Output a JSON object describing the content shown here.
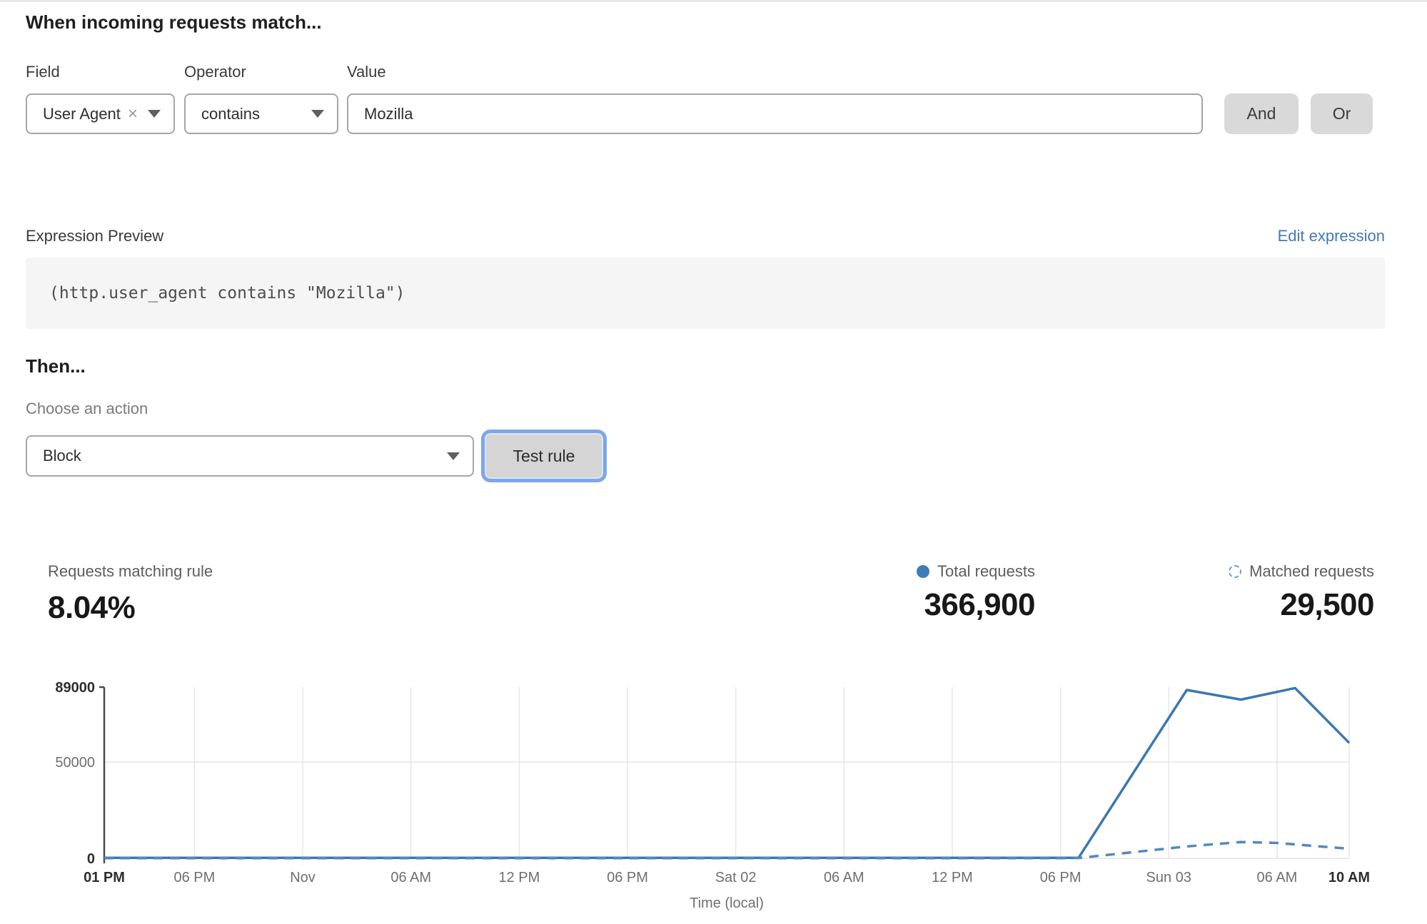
{
  "rule_builder": {
    "heading": "When incoming requests match...",
    "field": {
      "label": "Field",
      "value": "User Agent",
      "remove_icon": "close-icon",
      "dropdown_icon": "chevron-down-icon"
    },
    "operator": {
      "label": "Operator",
      "value": "contains"
    },
    "value": {
      "label": "Value",
      "value": "Mozilla"
    },
    "and_label": "And",
    "or_label": "Or"
  },
  "expression": {
    "label": "Expression Preview",
    "edit_link": "Edit expression",
    "code": "(http.user_agent contains \"Mozilla\")"
  },
  "action": {
    "heading": "Then...",
    "choose_label": "Choose an action",
    "selected": "Block",
    "test_button": "Test rule"
  },
  "stats": {
    "matching": {
      "label": "Requests matching rule",
      "value": "8.04%"
    },
    "total": {
      "label": "Total requests",
      "value": "366,900",
      "marker": "solid-dot"
    },
    "matched": {
      "label": "Matched requests",
      "value": "29,500",
      "marker": "dashed-circle"
    }
  },
  "colors": {
    "accent_blue": "#3d7cb8",
    "link_blue": "#4279b8",
    "line_solid": "#3c78b0",
    "line_dashed": "#5189bf",
    "focus_ring": "#7da7e6",
    "button_gray": "#d9d9d9",
    "code_box_gray": "#f5f5f5",
    "control_border": "#a6a6a6",
    "grid": "#e7e7e7",
    "axis": "#4a4a4a"
  },
  "chart_data": {
    "type": "line",
    "title": "",
    "xlabel": "Time (local)",
    "ylabel": "",
    "ylim": [
      0,
      89000
    ],
    "x_range": [
      0,
      69
    ],
    "x_unit": "hours from first tick (Thu 01 PM) to last (Sun 10 AM)",
    "grid": "vertical at each x tick, horizontal at 50000 and 0",
    "legend_position": "above chart, right (stats row)",
    "y_ticks": [
      {
        "label": "89000",
        "value": 89000,
        "bold": true
      },
      {
        "label": "50000",
        "value": 50000,
        "bold": false
      },
      {
        "label": "0",
        "value": 0,
        "bold": true
      }
    ],
    "x_ticks": [
      {
        "label": "01 PM",
        "hour": 0,
        "bold": true
      },
      {
        "label": "06 PM",
        "hour": 5,
        "bold": false
      },
      {
        "label": "Nov",
        "hour": 11,
        "bold": false
      },
      {
        "label": "06 AM",
        "hour": 17,
        "bold": false
      },
      {
        "label": "12 PM",
        "hour": 23,
        "bold": false
      },
      {
        "label": "06 PM",
        "hour": 29,
        "bold": false
      },
      {
        "label": "Sat 02",
        "hour": 35,
        "bold": false
      },
      {
        "label": "06 AM",
        "hour": 41,
        "bold": false
      },
      {
        "label": "12 PM",
        "hour": 47,
        "bold": false
      },
      {
        "label": "06 PM",
        "hour": 53,
        "bold": false
      },
      {
        "label": "Sun 03",
        "hour": 59,
        "bold": false
      },
      {
        "label": "06 AM",
        "hour": 65,
        "bold": false
      },
      {
        "label": "10 AM",
        "hour": 69,
        "bold": true
      }
    ],
    "series": [
      {
        "name": "Total requests",
        "style": "solid",
        "color": "#3c78b0",
        "points": [
          [
            0,
            250
          ],
          [
            5,
            250
          ],
          [
            11,
            250
          ],
          [
            17,
            250
          ],
          [
            23,
            250
          ],
          [
            29,
            250
          ],
          [
            35,
            250
          ],
          [
            41,
            250
          ],
          [
            47,
            250
          ],
          [
            53,
            250
          ],
          [
            54,
            300
          ],
          [
            60,
            87500
          ],
          [
            63,
            82500
          ],
          [
            66,
            88500
          ],
          [
            69,
            60000
          ]
        ]
      },
      {
        "name": "Matched requests",
        "style": "dashed",
        "color": "#5189bf",
        "points": [
          [
            0,
            120
          ],
          [
            5,
            120
          ],
          [
            11,
            120
          ],
          [
            17,
            120
          ],
          [
            23,
            120
          ],
          [
            29,
            120
          ],
          [
            35,
            120
          ],
          [
            41,
            120
          ],
          [
            47,
            120
          ],
          [
            53,
            120
          ],
          [
            54,
            200
          ],
          [
            57,
            3200
          ],
          [
            60,
            6200
          ],
          [
            63,
            8500
          ],
          [
            65,
            8000
          ],
          [
            67,
            6500
          ],
          [
            69,
            5000
          ]
        ]
      }
    ]
  }
}
